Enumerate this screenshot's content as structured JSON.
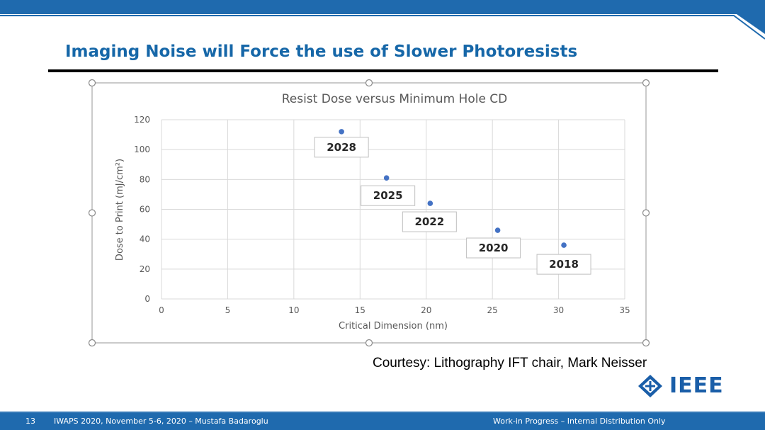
{
  "slide": {
    "title": "Imaging Noise will Force the use of Slower Photoresists",
    "courtesy": "Courtesy: Lithography IFT chair, Mark Neisser",
    "logo_text": "IEEE",
    "page_number": "13",
    "footer_left": "IWAPS 2020, November 5-6, 2020 – Mustafa Badaroglu",
    "footer_right": "Work-in Progress – Internal Distribution Only"
  },
  "colors": {
    "brand_blue": "#1667A8",
    "band_blue": "#1F6AAE",
    "point_blue": "#4472C4"
  },
  "chart_data": {
    "type": "scatter",
    "title": "Resist Dose versus Minimum Hole CD",
    "xlabel": "Critical Dimension (nm)",
    "ylabel": "Dose to Print (mJ/cm²)",
    "xlim": [
      0,
      35
    ],
    "ylim": [
      0,
      120
    ],
    "xticks": [
      0,
      5,
      10,
      15,
      20,
      25,
      30,
      35
    ],
    "yticks": [
      0,
      20,
      40,
      60,
      80,
      100,
      120
    ],
    "grid": true,
    "points": [
      {
        "x": 13.6,
        "y": 112,
        "label": "2028"
      },
      {
        "x": 17,
        "y": 81,
        "label": "2025"
      },
      {
        "x": 20.3,
        "y": 64,
        "label": "2022"
      },
      {
        "x": 25.4,
        "y": 46,
        "label": "2020"
      },
      {
        "x": 30.4,
        "y": 36,
        "label": "2018"
      }
    ]
  }
}
